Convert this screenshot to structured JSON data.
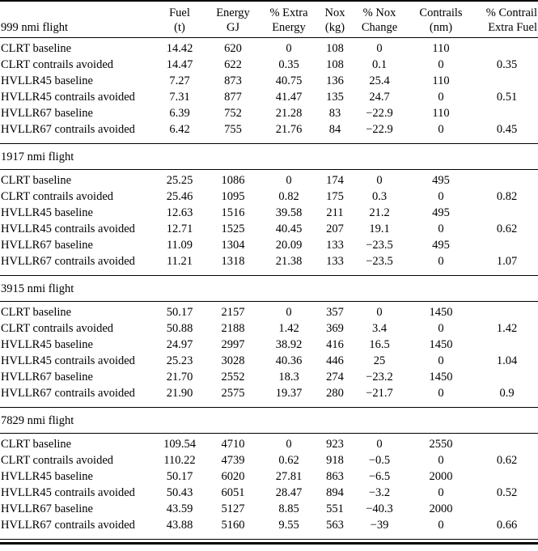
{
  "page": {
    "background": "#ffffff",
    "text_color": "#000000"
  },
  "table": {
    "header": {
      "corner_line1": "",
      "columns": [
        {
          "line1": "Fuel",
          "line2": "(t)"
        },
        {
          "line1": "Energy",
          "line2": "GJ"
        },
        {
          "line1": "% Extra",
          "line2": "Energy"
        },
        {
          "line1": "Nox",
          "line2": "(kg)"
        },
        {
          "line1": "% Nox",
          "line2": "Change"
        },
        {
          "line1": "Contrails",
          "line2": "(nm)"
        },
        {
          "line1": "% Contrail",
          "line2": "Extra Fuel"
        }
      ]
    },
    "sections": [
      {
        "title": "999 nmi flight",
        "rows": [
          {
            "label": "CLRT baseline",
            "values": [
              "14.42",
              "620",
              "0",
              "108",
              "0",
              "110",
              ""
            ]
          },
          {
            "label": "CLRT contrails avoided",
            "values": [
              "14.47",
              "622",
              "0.35",
              "108",
              "0.1",
              "0",
              "0.35"
            ]
          },
          {
            "label": "HVLLR45 baseline",
            "values": [
              "7.27",
              "873",
              "40.75",
              "136",
              "25.4",
              "110",
              ""
            ]
          },
          {
            "label": "HVLLR45 contrails avoided",
            "values": [
              "7.31",
              "877",
              "41.47",
              "135",
              "24.7",
              "0",
              "0.51"
            ]
          },
          {
            "label": "HVLLR67 baseline",
            "values": [
              "6.39",
              "752",
              "21.28",
              "83",
              "−22.9",
              "110",
              ""
            ]
          },
          {
            "label": "HVLLR67 contrails avoided",
            "values": [
              "6.42",
              "755",
              "21.76",
              "84",
              "−22.9",
              "0",
              "0.45"
            ]
          }
        ]
      },
      {
        "title": "1917 nmi flight",
        "rows": [
          {
            "label": "CLRT baseline",
            "values": [
              "25.25",
              "1086",
              "0",
              "174",
              "0",
              "495",
              ""
            ]
          },
          {
            "label": "CLRT contrails avoided",
            "values": [
              "25.46",
              "1095",
              "0.82",
              "175",
              "0.3",
              "0",
              "0.82"
            ]
          },
          {
            "label": "HVLLR45 baseline",
            "values": [
              "12.63",
              "1516",
              "39.58",
              "211",
              "21.2",
              "495",
              ""
            ]
          },
          {
            "label": "HVLLR45 contrails avoided",
            "values": [
              "12.71",
              "1525",
              "40.45",
              "207",
              "19.1",
              "0",
              "0.62"
            ]
          },
          {
            "label": "HVLLR67 baseline",
            "values": [
              "11.09",
              "1304",
              "20.09",
              "133",
              "−23.5",
              "495",
              ""
            ]
          },
          {
            "label": "HVLLR67 contrails avoided",
            "values": [
              "11.21",
              "1318",
              "21.38",
              "133",
              "−23.5",
              "0",
              "1.07"
            ]
          }
        ]
      },
      {
        "title": "3915 nmi flight",
        "rows": [
          {
            "label": "CLRT baseline",
            "values": [
              "50.17",
              "2157",
              "0",
              "357",
              "0",
              "1450",
              ""
            ]
          },
          {
            "label": "CLRT contrails avoided",
            "values": [
              "50.88",
              "2188",
              "1.42",
              "369",
              "3.4",
              "0",
              "1.42"
            ]
          },
          {
            "label": "HVLLR45 baseline",
            "values": [
              "24.97",
              "2997",
              "38.92",
              "416",
              "16.5",
              "1450",
              ""
            ]
          },
          {
            "label": "HVLLR45 contrails avoided",
            "values": [
              "25.23",
              "3028",
              "40.36",
              "446",
              "25",
              "0",
              "1.04"
            ]
          },
          {
            "label": "HVLLR67 baseline",
            "values": [
              "21.70",
              "2552",
              "18.3",
              "274",
              "−23.2",
              "1450",
              ""
            ]
          },
          {
            "label": "HVLLR67 contrails avoided",
            "values": [
              "21.90",
              "2575",
              "19.37",
              "280",
              "−21.7",
              "0",
              "0.9"
            ]
          }
        ]
      },
      {
        "title": "7829 nmi flight",
        "rows": [
          {
            "label": "CLRT baseline",
            "values": [
              "109.54",
              "4710",
              "0",
              "923",
              "0",
              "2550",
              ""
            ]
          },
          {
            "label": "CLRT contrails avoided",
            "values": [
              "110.22",
              "4739",
              "0.62",
              "918",
              "−0.5",
              "0",
              "0.62"
            ]
          },
          {
            "label": "HVLLR45 baseline",
            "values": [
              "50.17",
              "6020",
              "27.81",
              "863",
              "−6.5",
              "2000",
              ""
            ]
          },
          {
            "label": "HVLLR45 contrails avoided",
            "values": [
              "50.43",
              "6051",
              "28.47",
              "894",
              "−3.2",
              "0",
              "0.52"
            ]
          },
          {
            "label": "HVLLR67 baseline",
            "values": [
              "43.59",
              "5127",
              "8.85",
              "551",
              "−40.3",
              "2000",
              ""
            ]
          },
          {
            "label": "HVLLR67 contrails avoided",
            "values": [
              "43.88",
              "5160",
              "9.55",
              "563",
              "−39",
              "0",
              "0.66"
            ]
          }
        ]
      }
    ]
  }
}
